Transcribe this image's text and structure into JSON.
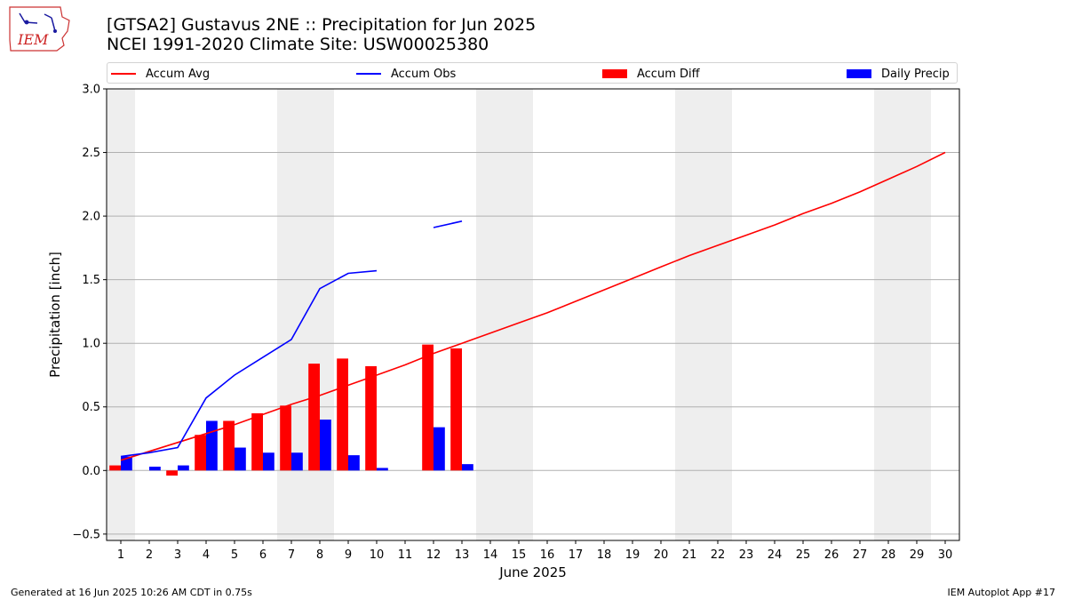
{
  "logo": {
    "text": "IEM"
  },
  "header": {
    "title_line1": "[GTSA2] Gustavus 2NE :: Precipitation for Jun 2025",
    "title_line2": "NCEI 1991-2020 Climate Site: USW00025380"
  },
  "footer": {
    "generated": "Generated at 16 Jun 2025 10:26 AM CDT in 0.75s",
    "app": "IEM Autoplot App #17"
  },
  "colors": {
    "avg": "#ff0000",
    "obs": "#0000ff",
    "diff": "#ff0000",
    "daily": "#0000ff",
    "weekend_shade": "#eeeeee",
    "grid": "#b0b0b0"
  },
  "chart_data": {
    "type": "bar",
    "xlabel": "June 2025",
    "ylabel": "Precipitation [inch]",
    "ylim": [
      -0.55,
      3.0
    ],
    "yticks": [
      -0.5,
      0.0,
      0.5,
      1.0,
      1.5,
      2.0,
      2.5,
      3.0
    ],
    "ytick_labels": [
      "−0.5",
      "0.0",
      "0.5",
      "1.0",
      "1.5",
      "2.0",
      "2.5",
      "3.0"
    ],
    "days": [
      1,
      2,
      3,
      4,
      5,
      6,
      7,
      8,
      9,
      10,
      11,
      12,
      13,
      14,
      15,
      16,
      17,
      18,
      19,
      20,
      21,
      22,
      23,
      24,
      25,
      26,
      27,
      28,
      29,
      30
    ],
    "weekend_days": [
      1,
      7,
      8,
      14,
      15,
      21,
      22,
      28,
      29
    ],
    "grid": "horizontal",
    "legend_position": "top",
    "series": [
      {
        "name": "Accum Avg",
        "kind": "line",
        "values": [
          0.08,
          0.15,
          0.22,
          0.29,
          0.36,
          0.44,
          0.52,
          0.59,
          0.67,
          0.75,
          0.83,
          0.92,
          1.0,
          1.08,
          1.16,
          1.24,
          1.33,
          1.42,
          1.51,
          1.6,
          1.69,
          1.77,
          1.85,
          1.93,
          2.02,
          2.1,
          2.19,
          2.29,
          2.39,
          2.5
        ]
      },
      {
        "name": "Accum Obs",
        "kind": "line",
        "values": [
          0.11,
          0.14,
          0.18,
          0.57,
          0.75,
          0.89,
          1.03,
          1.43,
          1.55,
          1.57,
          null,
          1.91,
          1.96,
          null,
          null,
          null,
          null,
          null,
          null,
          null,
          null,
          null,
          null,
          null,
          null,
          null,
          null,
          null,
          null,
          null
        ]
      },
      {
        "name": "Accum Diff",
        "kind": "bar",
        "values": [
          0.04,
          null,
          -0.04,
          0.28,
          0.39,
          0.45,
          0.51,
          0.84,
          0.88,
          0.82,
          null,
          0.99,
          0.96,
          null,
          null,
          null,
          null,
          null,
          null,
          null,
          null,
          null,
          null,
          null,
          null,
          null,
          null,
          null,
          null,
          null
        ]
      },
      {
        "name": "Daily Precip",
        "kind": "bar",
        "values": [
          0.11,
          0.03,
          0.04,
          0.39,
          0.18,
          0.14,
          0.14,
          0.4,
          0.12,
          0.02,
          null,
          0.34,
          0.05,
          null,
          null,
          null,
          null,
          null,
          null,
          null,
          null,
          null,
          null,
          null,
          null,
          null,
          null,
          null,
          null,
          null
        ]
      }
    ]
  }
}
